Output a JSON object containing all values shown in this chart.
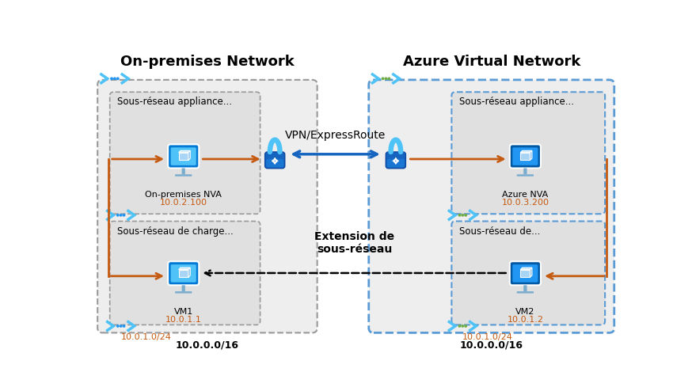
{
  "bg_color": "#ffffff",
  "title_left": "On-premises Network",
  "title_right": "Azure Virtual Network",
  "label_nva_left": "On-premises NVA",
  "label_ip_nva_left": "10.0.2.100",
  "label_nva_right": "Azure NVA",
  "label_ip_nva_right": "10.0.3.200",
  "label_vm1": "VM1",
  "label_ip_vm1": "10.0.1.1",
  "label_vm2": "VM2",
  "label_ip_vm2": "10.0.1.2",
  "label_subnet_left_top": "Sous-réseau appliance...",
  "label_subnet_left_bottom": "Sous-réseau de charge...",
  "label_subnet_right_top": "Sous-réseau appliance...",
  "label_subnet_right_bottom": "Sous-réseau de...",
  "label_vpn": "VPN/ExpressRoute",
  "label_extension": "Extension de\nsous-réseau",
  "label_cidr_left_bottom": "10.0.1.0/24",
  "label_cidr_right_bottom": "10.0.1.0/24",
  "label_cidr_left_outer": "10.0.0.0/16",
  "label_cidr_right_outer": "10.0.0.0/16",
  "orange": "#c55a11",
  "blue_dark": "#0070c0",
  "blue_mid": "#2196f3",
  "blue_light": "#4fc3f7",
  "blue_arrow": "#1565c0",
  "gray_box": "#e8e8e8",
  "gray_inner": "#e0e0e0",
  "gray_border": "#999999",
  "blue_border": "#5b9bd5",
  "green_dot": "#70ad47"
}
